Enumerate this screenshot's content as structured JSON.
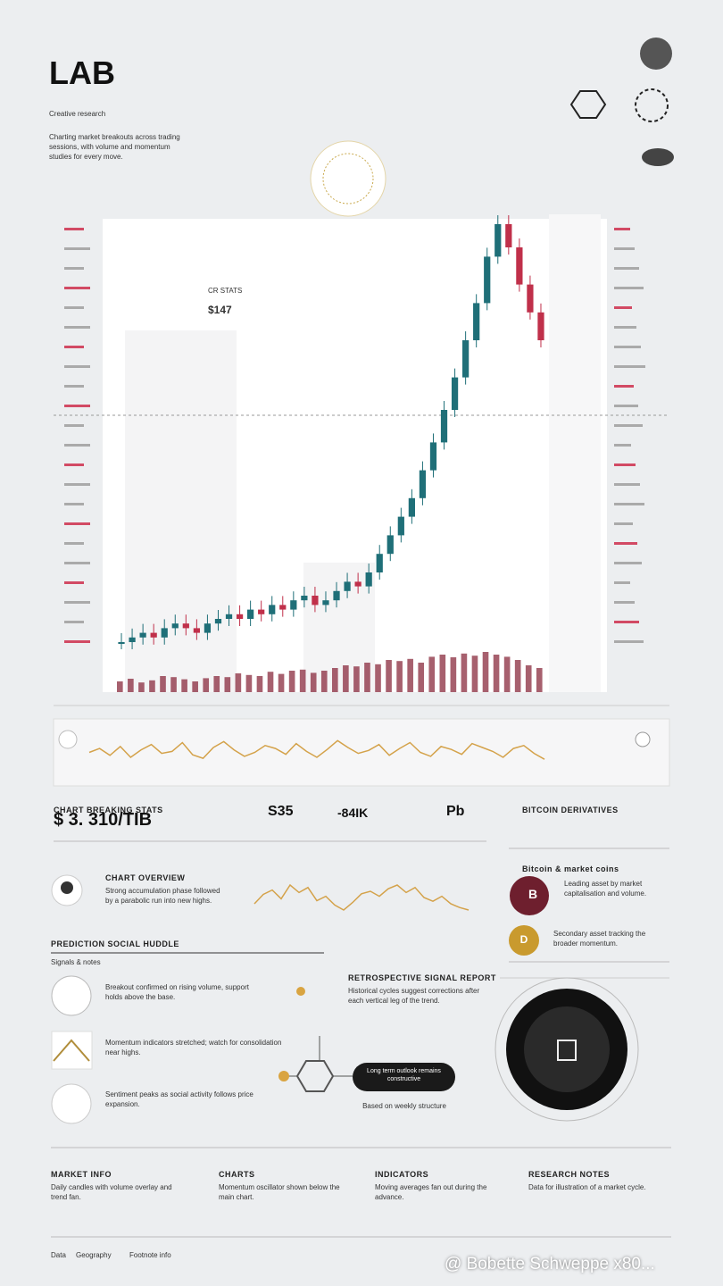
{
  "header": {
    "title": "LAB",
    "tagline": "Creative research",
    "intro": "Charting market breakouts across trading sessions, with volume and momentum studies for every move."
  },
  "chart_data": [
    {
      "type": "candlestick",
      "annotation": "$147",
      "annotation_caption": "CR STATS",
      "up_color": "#1f6f78",
      "down_color": "#c0304a",
      "volume_color": "#8a2b3d",
      "values": [
        5,
        6,
        7,
        6,
        8,
        9,
        8,
        7,
        9,
        10,
        11,
        10,
        12,
        11,
        13,
        12,
        14,
        15,
        13,
        14,
        16,
        18,
        17,
        20,
        24,
        28,
        32,
        36,
        42,
        48,
        55,
        62,
        70,
        78,
        88,
        95,
        90,
        82,
        76,
        70
      ],
      "volume": [
        20,
        25,
        18,
        22,
        30,
        28,
        24,
        20,
        26,
        30,
        28,
        35,
        32,
        30,
        38,
        34,
        40,
        42,
        36,
        40,
        45,
        50,
        48,
        55,
        52,
        60,
        58,
        62,
        55,
        66,
        70,
        65,
        72,
        68,
        75,
        70,
        66,
        60,
        50,
        45
      ],
      "ylim": [
        0,
        100
      ],
      "volume_lim": [
        0,
        200
      ]
    },
    {
      "type": "line",
      "color": "#d4a24a",
      "values": [
        50,
        58,
        44,
        62,
        40,
        55,
        66,
        48,
        52,
        70,
        45,
        38,
        60,
        72,
        55,
        42,
        50,
        64,
        58,
        46,
        68,
        52,
        40,
        56,
        74,
        60,
        48,
        54,
        66,
        44,
        58,
        70,
        50,
        42,
        62,
        56,
        46,
        68,
        60,
        52,
        40,
        58,
        64,
        48,
        36
      ],
      "ylim": [
        0,
        100
      ]
    },
    {
      "type": "line",
      "color": "#d4a24a",
      "values": [
        40,
        55,
        62,
        48,
        70,
        58,
        66,
        45,
        52,
        38,
        30,
        42,
        56,
        60,
        52,
        64,
        70,
        58,
        66,
        50,
        44,
        52,
        40,
        34,
        30
      ],
      "ylim": [
        0,
        100
      ]
    }
  ],
  "stats": {
    "heading": "CHART BREAKING STATS",
    "price": "$ 3. 310/TIB",
    "items": [
      "S35",
      "-84IK",
      "Pb"
    ]
  },
  "overview": {
    "heading": "CHART OVERVIEW",
    "text": "Strong accumulation phase followed by a parabolic run into new highs."
  },
  "coins": {
    "heading": "BITCOIN DERIVATIVES",
    "subheading": "Bitcoin & market coins",
    "items": [
      {
        "symbol": "B",
        "text": "Leading asset by market capitalisation and volume."
      },
      {
        "symbol": "D",
        "text": "Secondary asset tracking the broader momentum."
      }
    ]
  },
  "prediction": {
    "heading": "PREDICTION SOCIAL HUDDLE",
    "subheading": "Signals & notes",
    "items": [
      "Breakout confirmed on rising volume, support holds above the base.",
      "Momentum indicators stretched; watch for consolidation near highs.",
      "Sentiment peaks as social activity follows price expansion."
    ],
    "insight_heading": "RETROSPECTIVE SIGNAL REPORT",
    "insight_text": "Historical cycles suggest corrections after each vertical leg of the trend.",
    "pill_text": "Long term outlook remains constructive",
    "pill_caption": "Based on weekly structure"
  },
  "columns": [
    {
      "heading": "MARKET INFO",
      "text": "Daily candles with volume overlay and trend fan."
    },
    {
      "heading": "CHARTS",
      "text": "Momentum oscillator shown below the main chart."
    },
    {
      "heading": "INDICATORS",
      "text": "Moving averages fan out during the advance."
    },
    {
      "heading": "RESEARCH NOTES",
      "text": "Data for illustration of a market cycle."
    }
  ],
  "footer": [
    "Data",
    "Geography",
    "Footnote info"
  ],
  "watermark": "@ Bobette Schweppe x80..."
}
